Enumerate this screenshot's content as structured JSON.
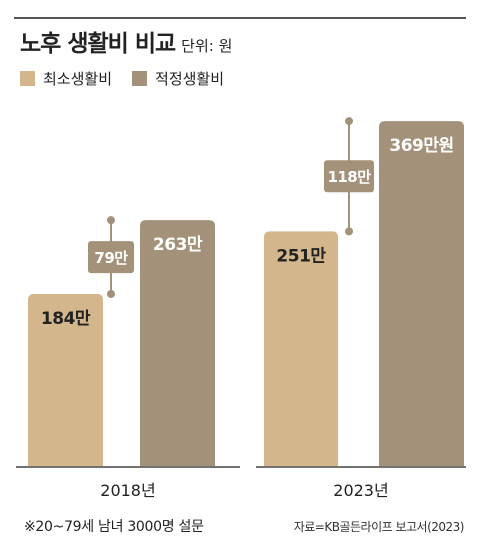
{
  "header": {
    "title": "노후 생활비 비교",
    "unit": "단위: 원"
  },
  "legend": [
    {
      "label": "최소생활비",
      "color": "#d4b68d"
    },
    {
      "label": "적정생활비",
      "color": "#a49179"
    }
  ],
  "footnote": "※20~79세 남녀 3000명 설문",
  "source": "자료=KB골든라이프 보고서(2023)",
  "colors": {
    "minimum": "#d4b68d",
    "adequate": "#a49179",
    "connector": "#a49179",
    "axis": "#444444"
  },
  "chart_data": {
    "type": "bar",
    "categories": [
      "2018년",
      "2023년"
    ],
    "series": [
      {
        "name": "최소생활비",
        "values": [
          184,
          251
        ],
        "labels": [
          "184만",
          "251만"
        ]
      },
      {
        "name": "적정생활비",
        "values": [
          263,
          369
        ],
        "labels": [
          "263만",
          "369만원"
        ]
      }
    ],
    "differences": [
      {
        "value": 79,
        "label": "79만"
      },
      {
        "value": 118,
        "label": "118만"
      }
    ],
    "ylim": [
      0,
      383
    ],
    "grid": false,
    "legend_position": "top-left"
  }
}
